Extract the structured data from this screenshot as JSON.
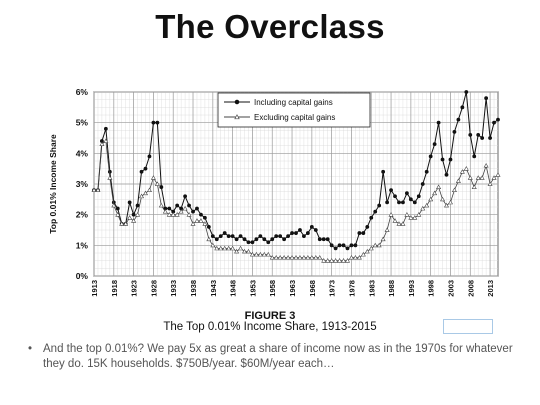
{
  "slide": {
    "title": "The Overclass",
    "figure_label": "FIGURE 3",
    "figure_caption": "The Top 0.01% Income Share, 1913-2015",
    "bullet": "And the top 0.01%? We pay 5x as great a share of income now as in the 1970s for whatever they do. 15K households. $750B/year. $60M/year each…"
  },
  "chart_data": {
    "type": "line",
    "title": "",
    "xlabel": "",
    "ylabel": "Top 0.01% Income Share",
    "ylim": [
      0,
      6
    ],
    "xlim": [
      1913,
      2015
    ],
    "y_ticks": [
      "0%",
      "1%",
      "2%",
      "3%",
      "4%",
      "5%",
      "6%"
    ],
    "x_ticks": [
      "1913",
      "1918",
      "1923",
      "1928",
      "1933",
      "1938",
      "1943",
      "1948",
      "1953",
      "1958",
      "1963",
      "1968",
      "1973",
      "1978",
      "1983",
      "1988",
      "1993",
      "1998",
      "2003",
      "2008",
      "2013"
    ],
    "grid": true,
    "legend_position": "top-center",
    "x": [
      1913,
      1914,
      1915,
      1916,
      1917,
      1918,
      1919,
      1920,
      1921,
      1922,
      1923,
      1924,
      1925,
      1926,
      1927,
      1928,
      1929,
      1930,
      1931,
      1932,
      1933,
      1934,
      1935,
      1936,
      1937,
      1938,
      1939,
      1940,
      1941,
      1942,
      1943,
      1944,
      1945,
      1946,
      1947,
      1948,
      1949,
      1950,
      1951,
      1952,
      1953,
      1954,
      1955,
      1956,
      1957,
      1958,
      1959,
      1960,
      1961,
      1962,
      1963,
      1964,
      1965,
      1966,
      1967,
      1968,
      1969,
      1970,
      1971,
      1972,
      1973,
      1974,
      1975,
      1976,
      1977,
      1978,
      1979,
      1980,
      1981,
      1982,
      1983,
      1984,
      1985,
      1986,
      1987,
      1988,
      1989,
      1990,
      1991,
      1992,
      1993,
      1994,
      1995,
      1996,
      1997,
      1998,
      1999,
      2000,
      2001,
      2002,
      2003,
      2004,
      2005,
      2006,
      2007,
      2008,
      2009,
      2010,
      2011,
      2012,
      2013,
      2014,
      2015
    ],
    "series": [
      {
        "name": "Including capital gains",
        "values": [
          2.8,
          2.8,
          4.4,
          4.8,
          3.4,
          2.4,
          2.2,
          1.7,
          1.7,
          2.4,
          2.0,
          2.3,
          3.4,
          3.5,
          3.9,
          5.0,
          5.0,
          2.9,
          2.2,
          2.2,
          2.1,
          2.3,
          2.2,
          2.6,
          2.3,
          2.1,
          2.2,
          2.0,
          1.9,
          1.6,
          1.3,
          1.2,
          1.3,
          1.4,
          1.3,
          1.3,
          1.2,
          1.3,
          1.2,
          1.1,
          1.1,
          1.2,
          1.3,
          1.2,
          1.1,
          1.2,
          1.3,
          1.3,
          1.2,
          1.3,
          1.4,
          1.4,
          1.5,
          1.3,
          1.4,
          1.6,
          1.5,
          1.2,
          1.2,
          1.2,
          1.0,
          0.9,
          1.0,
          1.0,
          0.9,
          1.0,
          1.0,
          1.4,
          1.4,
          1.6,
          1.9,
          2.1,
          2.3,
          3.4,
          2.4,
          2.8,
          2.6,
          2.4,
          2.4,
          2.7,
          2.5,
          2.4,
          2.6,
          3.0,
          3.4,
          3.9,
          4.3,
          5.0,
          3.8,
          3.3,
          3.8,
          4.7,
          5.1,
          5.5,
          6.0,
          4.6,
          3.9,
          4.6,
          4.5,
          5.8,
          4.5,
          5.0,
          5.1
        ]
      },
      {
        "name": "Excluding capital gains",
        "values": [
          2.8,
          2.8,
          4.3,
          4.4,
          3.2,
          2.3,
          2.0,
          1.7,
          1.7,
          1.9,
          1.8,
          2.0,
          2.6,
          2.7,
          2.8,
          3.2,
          3.0,
          2.3,
          2.1,
          2.0,
          2.0,
          2.0,
          2.1,
          2.2,
          2.0,
          1.7,
          1.8,
          1.8,
          1.7,
          1.2,
          1.0,
          0.9,
          0.9,
          0.9,
          0.9,
          0.9,
          0.8,
          0.9,
          0.8,
          0.8,
          0.7,
          0.7,
          0.7,
          0.7,
          0.7,
          0.6,
          0.6,
          0.6,
          0.6,
          0.6,
          0.6,
          0.6,
          0.6,
          0.6,
          0.6,
          0.6,
          0.6,
          0.6,
          0.5,
          0.5,
          0.5,
          0.5,
          0.5,
          0.5,
          0.5,
          0.6,
          0.6,
          0.6,
          0.7,
          0.8,
          0.9,
          1.0,
          1.0,
          1.2,
          1.5,
          2.0,
          1.8,
          1.7,
          1.7,
          2.0,
          1.9,
          1.9,
          2.0,
          2.2,
          2.3,
          2.5,
          2.7,
          2.9,
          2.5,
          2.3,
          2.4,
          2.8,
          3.1,
          3.4,
          3.5,
          3.2,
          2.9,
          3.2,
          3.2,
          3.6,
          3.0,
          3.2,
          3.3
        ]
      }
    ]
  }
}
